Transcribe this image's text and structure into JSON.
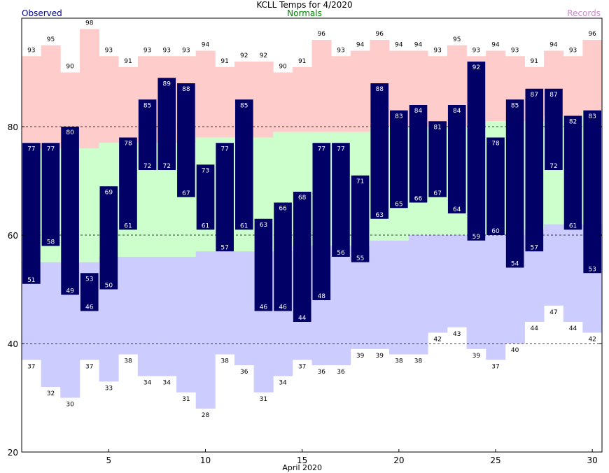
{
  "chart_data": {
    "type": "bar",
    "title": "KCLL Temps for 4/2020",
    "legend": {
      "observed": "Observed",
      "normals": "Normals",
      "records": "Records"
    },
    "xlabel": "April 2020",
    "ylim": [
      20,
      100
    ],
    "yticks": [
      20,
      40,
      60,
      80
    ],
    "xticks": [
      5,
      10,
      15,
      20,
      25,
      30
    ],
    "days": [
      1,
      2,
      3,
      4,
      5,
      6,
      7,
      8,
      9,
      10,
      11,
      12,
      13,
      14,
      15,
      16,
      17,
      18,
      19,
      20,
      21,
      22,
      23,
      24,
      25,
      26,
      27,
      28,
      29,
      30
    ],
    "series": [
      {
        "name": "Observed High",
        "values": [
          77,
          77,
          80,
          53,
          69,
          78,
          85,
          89,
          88,
          73,
          77,
          85,
          63,
          66,
          68,
          77,
          77,
          71,
          88,
          83,
          84,
          81,
          84,
          92,
          78,
          85,
          87,
          87,
          82,
          83
        ]
      },
      {
        "name": "Observed Low",
        "values": [
          51,
          58,
          49,
          46,
          50,
          61,
          72,
          72,
          67,
          61,
          57,
          61,
          46,
          46,
          44,
          48,
          56,
          55,
          63,
          65,
          66,
          67,
          64,
          59,
          60,
          54,
          57,
          72,
          61,
          53
        ]
      },
      {
        "name": "Record High",
        "values": [
          93,
          95,
          90,
          98,
          93,
          91,
          93,
          93,
          93,
          94,
          91,
          92,
          92,
          90,
          91,
          96,
          93,
          94,
          96,
          94,
          94,
          93,
          95,
          93,
          94,
          93,
          91,
          94,
          93,
          96
        ]
      },
      {
        "name": "Record Low",
        "values": [
          37,
          32,
          30,
          37,
          33,
          38,
          34,
          34,
          31,
          28,
          38,
          36,
          31,
          34,
          37,
          36,
          36,
          39,
          39,
          38,
          38,
          42,
          43,
          39,
          37,
          40,
          44,
          47,
          44,
          42
        ]
      },
      {
        "name": "Normal High",
        "values": [
          76,
          76,
          76,
          76,
          77,
          77,
          77,
          77,
          77,
          78,
          78,
          78,
          78,
          79,
          79,
          79,
          79,
          79,
          80,
          80,
          80,
          80,
          80,
          80,
          81,
          81,
          81,
          82,
          82,
          83
        ]
      },
      {
        "name": "Normal Low",
        "values": [
          55,
          55,
          55,
          55,
          56,
          56,
          56,
          56,
          56,
          57,
          57,
          57,
          57,
          57,
          58,
          58,
          58,
          58,
          59,
          59,
          60,
          60,
          60,
          60,
          60,
          60,
          61,
          62,
          62,
          62
        ]
      }
    ],
    "grid": "dashed at 40, 60, 80",
    "colors": {
      "observed_bar": "#000066",
      "record_high_band": "#ffcccc",
      "normal_band": "#ccffcc",
      "record_low_band": "#ccccff",
      "observed_title": "#000080",
      "normals_title": "#008000",
      "records_title": "#cc88cc"
    }
  }
}
